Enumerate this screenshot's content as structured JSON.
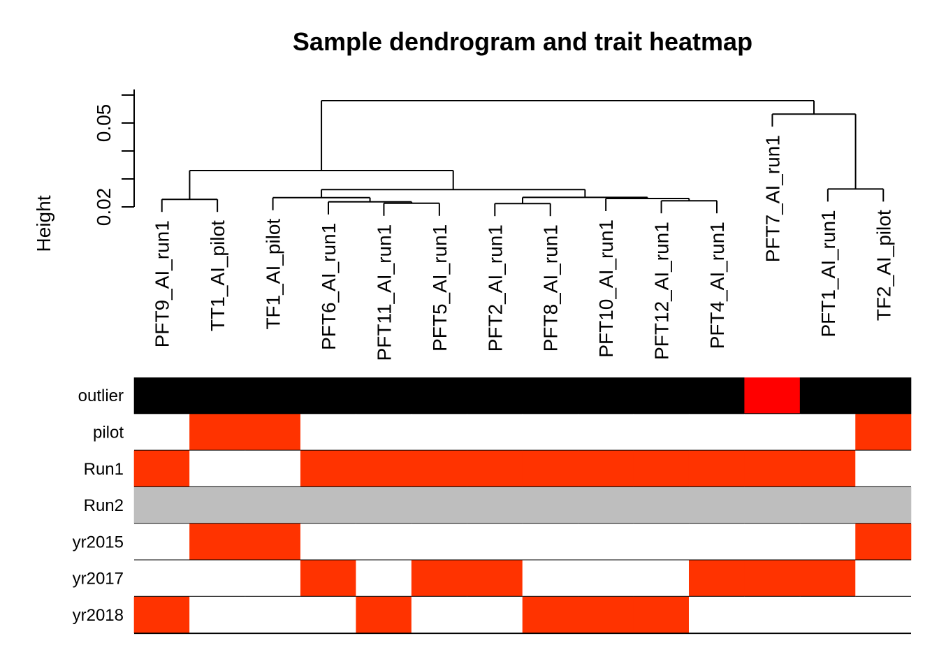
{
  "chart_data": {
    "type": "heatmap",
    "title": "Sample dendrogram and trait heatmap",
    "ylabel": "Height",
    "y_ticks": [
      {
        "value": 0.02,
        "label": "0.02"
      },
      {
        "value": 0.05,
        "label": "0.05"
      }
    ],
    "ylim": [
      0.02,
      0.062
    ],
    "samples": [
      "PFT9_AI_run1",
      "TT1_AI_pilot",
      "TF1_AI_pilot",
      "PFT6_AI_run1",
      "PFT11_AI_run1",
      "PFT5_AI_run1",
      "PFT2_AI_run1",
      "PFT8_AI_run1",
      "PFT10_AI_run1",
      "PFT12_AI_run1",
      "PFT4_AI_run1",
      "PFT7_AI_run1",
      "PFT1_AI_run1",
      "TF2_AI_pilot"
    ],
    "dendrogram": {
      "leaf_heights": [
        0.0227,
        0.0227,
        0.0233,
        0.0218,
        0.0213,
        0.0213,
        0.0212,
        0.0212,
        0.023,
        0.0222,
        0.0222,
        0.0532,
        0.0264,
        0.0264
      ],
      "merges": [
        {
          "left": "L0",
          "right": "L1",
          "height": 0.0227
        },
        {
          "left": "L4",
          "right": "L5",
          "height": 0.0213
        },
        {
          "left": "L3",
          "right": "M1",
          "height": 0.0218
        },
        {
          "left": "L2",
          "right": "M2",
          "height": 0.0233
        },
        {
          "left": "L6",
          "right": "L7",
          "height": 0.0212
        },
        {
          "left": "L9",
          "right": "L10",
          "height": 0.0222
        },
        {
          "left": "L8",
          "right": "M5",
          "height": 0.023
        },
        {
          "left": "M4",
          "right": "M6",
          "height": 0.0234
        },
        {
          "left": "M3",
          "right": "M7",
          "height": 0.0262
        },
        {
          "left": "M0",
          "right": "M8",
          "height": 0.033
        },
        {
          "left": "L12",
          "right": "L13",
          "height": 0.0264
        },
        {
          "left": "L11",
          "right": "M10",
          "height": 0.0532
        },
        {
          "left": "M9",
          "right": "M11",
          "height": 0.058
        }
      ]
    },
    "traits": [
      {
        "name": "outlier",
        "colors": [
          "#000000",
          "#000000",
          "#000000",
          "#000000",
          "#000000",
          "#000000",
          "#000000",
          "#000000",
          "#000000",
          "#000000",
          "#000000",
          "#FF0000",
          "#000000",
          "#000000"
        ]
      },
      {
        "name": "pilot",
        "colors": [
          "#FFFFFF",
          "#FF3300",
          "#FF3300",
          "#FFFFFF",
          "#FFFFFF",
          "#FFFFFF",
          "#FFFFFF",
          "#FFFFFF",
          "#FFFFFF",
          "#FFFFFF",
          "#FFFFFF",
          "#FFFFFF",
          "#FFFFFF",
          "#FF3300"
        ]
      },
      {
        "name": "Run1",
        "colors": [
          "#FF3300",
          "#FFFFFF",
          "#FFFFFF",
          "#FF3300",
          "#FF3300",
          "#FF3300",
          "#FF3300",
          "#FF3300",
          "#FF3300",
          "#FF3300",
          "#FF3300",
          "#FF3300",
          "#FF3300",
          "#FFFFFF"
        ]
      },
      {
        "name": "Run2",
        "colors": [
          "#BEBEBE",
          "#BEBEBE",
          "#BEBEBE",
          "#BEBEBE",
          "#BEBEBE",
          "#BEBEBE",
          "#BEBEBE",
          "#BEBEBE",
          "#BEBEBE",
          "#BEBEBE",
          "#BEBEBE",
          "#BEBEBE",
          "#BEBEBE",
          "#BEBEBE"
        ]
      },
      {
        "name": "yr2015",
        "colors": [
          "#FFFFFF",
          "#FF3300",
          "#FF3300",
          "#FFFFFF",
          "#FFFFFF",
          "#FFFFFF",
          "#FFFFFF",
          "#FFFFFF",
          "#FFFFFF",
          "#FFFFFF",
          "#FFFFFF",
          "#FFFFFF",
          "#FFFFFF",
          "#FF3300"
        ]
      },
      {
        "name": "yr2017",
        "colors": [
          "#FFFFFF",
          "#FFFFFF",
          "#FFFFFF",
          "#FF3300",
          "#FFFFFF",
          "#FF3300",
          "#FF3300",
          "#FFFFFF",
          "#FFFFFF",
          "#FFFFFF",
          "#FF3300",
          "#FF3300",
          "#FF3300",
          "#FFFFFF"
        ]
      },
      {
        "name": "yr2018",
        "colors": [
          "#FF3300",
          "#FFFFFF",
          "#FFFFFF",
          "#FFFFFF",
          "#FF3300",
          "#FFFFFF",
          "#FFFFFF",
          "#FF3300",
          "#FF3300",
          "#FF3300",
          "#FFFFFF",
          "#FFFFFF",
          "#FFFFFF",
          "#FFFFFF"
        ]
      }
    ],
    "colors": {
      "trait_high": "#FF3300",
      "outlier": "#FF0000",
      "neutral": "#BEBEBE",
      "background": "#FFFFFF"
    }
  }
}
